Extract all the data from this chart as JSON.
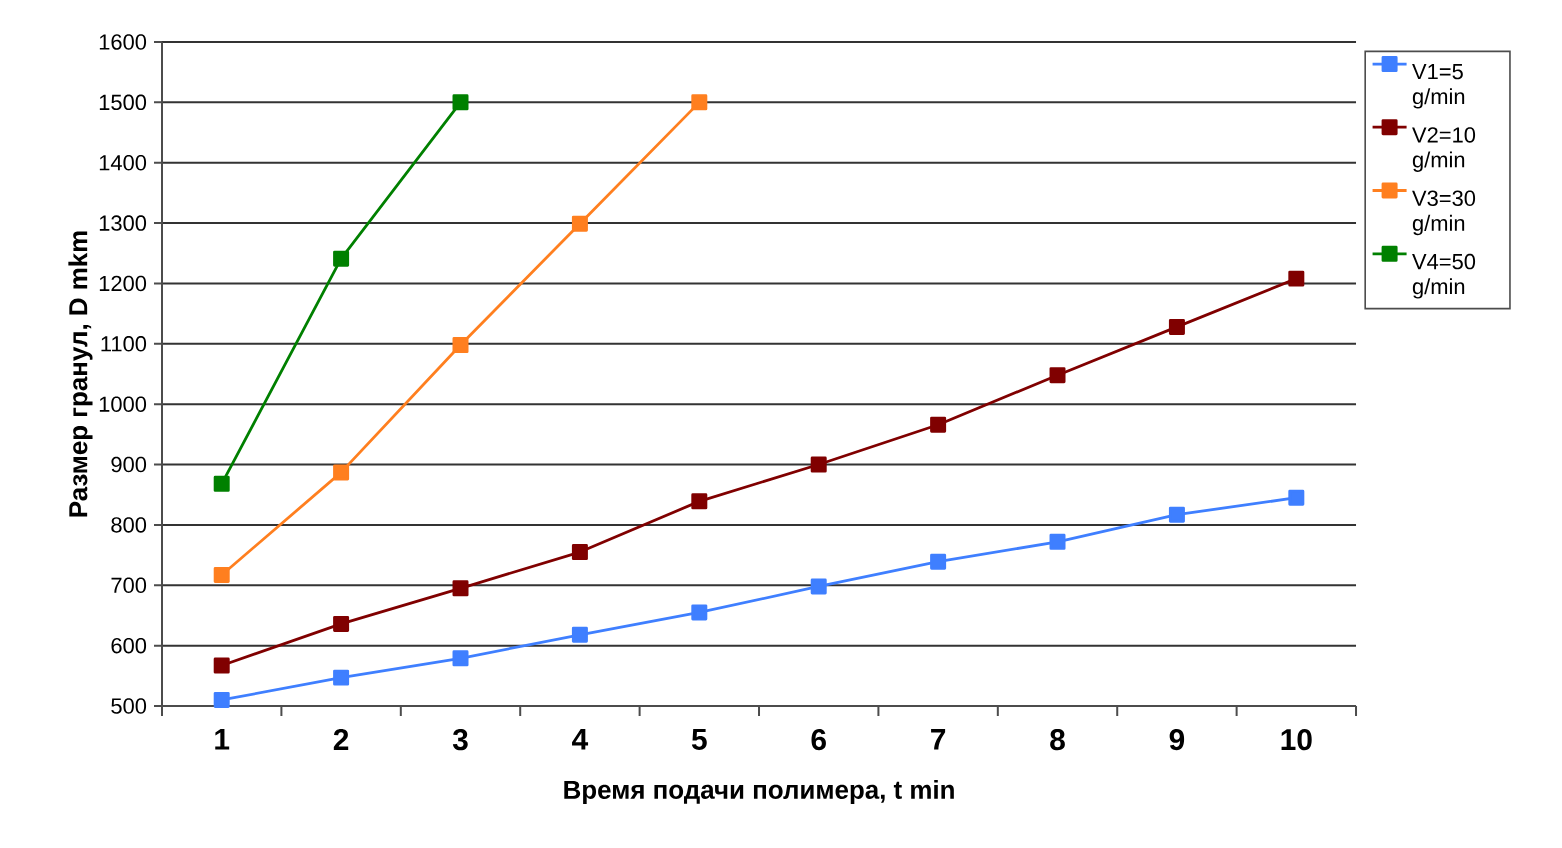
{
  "chart_data": {
    "type": "line",
    "xlabel": "Время подачи полимера, t min",
    "ylabel": "Размер гранул, D mkm",
    "categories": [
      "1",
      "2",
      "3",
      "4",
      "5",
      "6",
      "7",
      "8",
      "9",
      "10"
    ],
    "series": [
      {
        "name": "V1=5 g/min",
        "color": "#3f7fff",
        "values": [
          510,
          547,
          579,
          618,
          655,
          698,
          739,
          772,
          817,
          845
        ]
      },
      {
        "name": "V2=10 g/min",
        "color": "#800000",
        "values": [
          567,
          636,
          695,
          755,
          839,
          900,
          966,
          1048,
          1128,
          1208
        ]
      },
      {
        "name": "V3=30 g/min",
        "color": "#ff7f1f",
        "values": [
          717,
          887,
          1098,
          1299,
          1500,
          null,
          null,
          null,
          null,
          null
        ]
      },
      {
        "name": "V4=50 g/min",
        "color": "#008000",
        "values": [
          868,
          1241,
          1500,
          null,
          null,
          null,
          null,
          null,
          null,
          null
        ]
      }
    ],
    "ylim": [
      500,
      1600
    ],
    "yticks": [
      500,
      600,
      700,
      800,
      900,
      1000,
      1100,
      1200,
      1300,
      1400,
      1500,
      1600
    ],
    "grid": "y",
    "legend": "right",
    "marker": "square",
    "line_style": "solid"
  }
}
